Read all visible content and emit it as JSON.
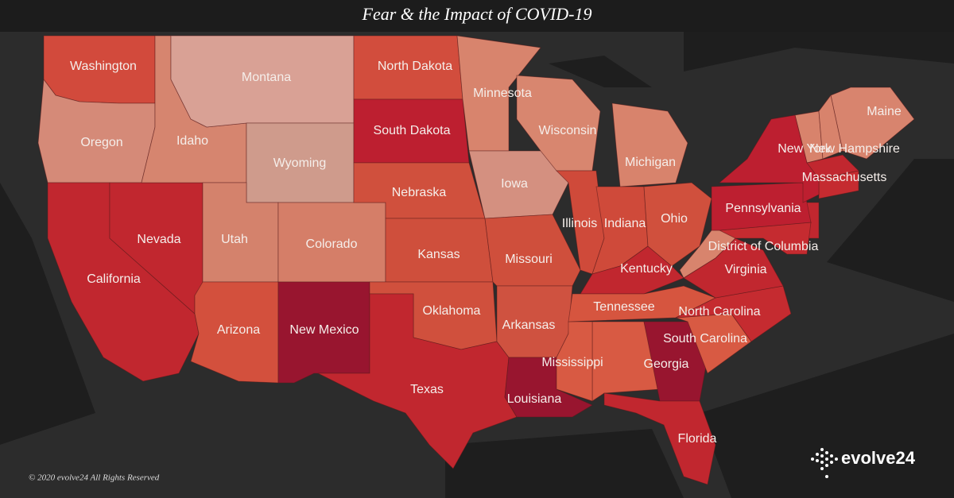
{
  "header": {
    "title": "Fear & the Impact of COVID-19"
  },
  "map": {
    "states": [
      {
        "name": "Washington",
        "color": "#d24a3c"
      },
      {
        "name": "Oregon",
        "color": "#d58a78"
      },
      {
        "name": "California",
        "color": "#c1272f"
      },
      {
        "name": "Nevada",
        "color": "#c1272f"
      },
      {
        "name": "Idaho",
        "color": "#d6856f"
      },
      {
        "name": "Montana",
        "color": "#d9a195"
      },
      {
        "name": "Wyoming",
        "color": "#cf9b8c"
      },
      {
        "name": "Utah",
        "color": "#d4826c"
      },
      {
        "name": "Arizona",
        "color": "#d3503d"
      },
      {
        "name": "Colorado",
        "color": "#d57e68"
      },
      {
        "name": "New Mexico",
        "color": "#98152f"
      },
      {
        "name": "North Dakota",
        "color": "#d24d3d"
      },
      {
        "name": "South Dakota",
        "color": "#bd1f30"
      },
      {
        "name": "Nebraska",
        "color": "#d0503d"
      },
      {
        "name": "Kansas",
        "color": "#cf4f3c"
      },
      {
        "name": "Oklahoma",
        "color": "#d0503d"
      },
      {
        "name": "Texas",
        "color": "#c1272f"
      },
      {
        "name": "Minnesota",
        "color": "#d8846d"
      },
      {
        "name": "Iowa",
        "color": "#d49080"
      },
      {
        "name": "Missouri",
        "color": "#cf4f3c"
      },
      {
        "name": "Arkansas",
        "color": "#cf5240"
      },
      {
        "name": "Louisiana",
        "color": "#98152f"
      },
      {
        "name": "Wisconsin",
        "color": "#d8866f"
      },
      {
        "name": "Illinois",
        "color": "#cf4a3a"
      },
      {
        "name": "Mississippi",
        "color": "#d85a43"
      },
      {
        "name": "Michigan",
        "color": "#d8836c"
      },
      {
        "name": "Indiana",
        "color": "#cf4a3a"
      },
      {
        "name": "Kentucky",
        "color": "#c1272f"
      },
      {
        "name": "Tennessee",
        "color": "#d6553f"
      },
      {
        "name": "Ohio",
        "color": "#d0503d"
      },
      {
        "name": "Georgia",
        "color": "#98152f"
      },
      {
        "name": "Florida",
        "color": "#c1272f"
      },
      {
        "name": "South Carolina",
        "color": "#d85a43"
      },
      {
        "name": "North Carolina",
        "color": "#c52b30"
      },
      {
        "name": "Virginia",
        "color": "#c1272f"
      },
      {
        "name": "District of Columbia"
      },
      {
        "name": "Pennsylvania",
        "color": "#bd1f30"
      },
      {
        "name": "New York",
        "color": "#bd1f30"
      },
      {
        "name": "Maine",
        "color": "#d8846e"
      },
      {
        "name": "New Hampshire",
        "color": "#d8836c"
      },
      {
        "name": "Massachusetts",
        "color": "#c1272f"
      }
    ]
  },
  "footer": {
    "copyright": "© 2020 evolve24 All Rights Reserved",
    "logo": "evolve24"
  }
}
